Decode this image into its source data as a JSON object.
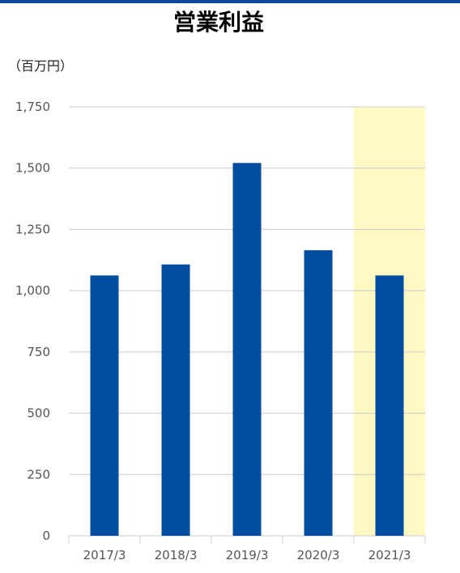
{
  "page": {
    "title": "営業利益",
    "unit_label": "（百万円）"
  },
  "chart_data": {
    "type": "bar",
    "title": "営業利益",
    "ylabel": "（百万円）",
    "categories": [
      "2017/3",
      "2018/3",
      "2019/3",
      "2020/3",
      "2021/3"
    ],
    "values": [
      1062,
      1107,
      1521,
      1165,
      1062
    ],
    "ylim": [
      0,
      1750
    ],
    "yticks": [
      0,
      250,
      500,
      750,
      1000,
      1250,
      1500,
      1750
    ],
    "ytick_labels": [
      "0",
      "250",
      "500",
      "750",
      "1,000",
      "1,250",
      "1,500",
      "1,750"
    ],
    "highlight_category": "2021/3",
    "grid": true,
    "colors": {
      "bar": "#034ea2",
      "highlight": "#fef9c3",
      "grid": "#c9ccd3",
      "accent": "#0b4aa0"
    }
  }
}
